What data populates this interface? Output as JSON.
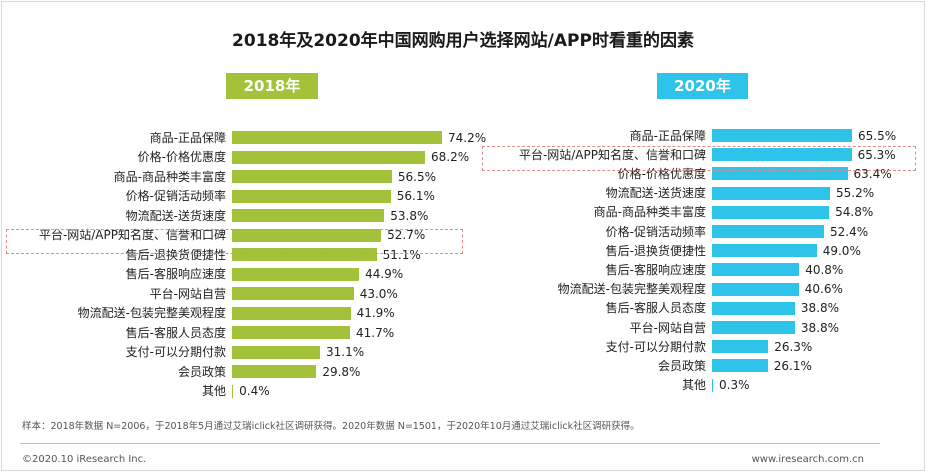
{
  "title": "2018年及2020年中国网购用户选择网站/APP时看重的因素",
  "colors": {
    "c2018": "#a3c23a",
    "c2020": "#2ec3e8",
    "highlight": "#e08a8a"
  },
  "chart_data": [
    {
      "type": "bar",
      "orientation": "horizontal",
      "title": "2018年",
      "unit": "%",
      "highlight_category": "平台-网站/APP知名度、信誉和口碑",
      "categories": [
        "商品-正品保障",
        "价格-价格优惠度",
        "商品-商品种类丰富度",
        "价格-促销活动频率",
        "物流配送-送货速度",
        "平台-网站/APP知名度、信誉和口碑",
        "售后-退换货便捷性",
        "售后-客服响应速度",
        "平台-网站自营",
        "物流配送-包装完整美观程度",
        "售后-客服人员态度",
        "支付-可以分期付款",
        "会员政策",
        "其他"
      ],
      "values": [
        74.2,
        68.2,
        56.5,
        56.1,
        53.8,
        52.7,
        51.1,
        44.9,
        43.0,
        41.9,
        41.7,
        31.1,
        29.8,
        0.4
      ],
      "labels": [
        "74.2%",
        "68.2%",
        "56.5%",
        "56.1%",
        "53.8%",
        "52.7%",
        "51.1%",
        "44.9%",
        "43.0%",
        "41.9%",
        "41.7%",
        "31.1%",
        "29.8%",
        "0.4%"
      ]
    },
    {
      "type": "bar",
      "orientation": "horizontal",
      "title": "2020年",
      "unit": "%",
      "highlight_category": "平台-网站/APP知名度、信誉和口碑",
      "categories": [
        "商品-正品保障",
        "平台-网站/APP知名度、信誉和口碑",
        "价格-价格优惠度",
        "物流配送-送货速度",
        "商品-商品种类丰富度",
        "价格-促销活动频率",
        "售后-退换货便捷性",
        "售后-客服响应速度",
        "物流配送-包装完整美观程度",
        "售后-客服人员态度",
        "平台-网站自营",
        "支付-可以分期付款",
        "会员政策",
        "其他"
      ],
      "values": [
        65.5,
        65.3,
        63.4,
        55.2,
        54.8,
        52.4,
        49.0,
        40.8,
        40.6,
        38.8,
        38.8,
        26.3,
        26.1,
        0.3
      ],
      "labels": [
        "65.5%",
        "65.3%",
        "63.4%",
        "55.2%",
        "54.8%",
        "52.4%",
        "49.0%",
        "40.8%",
        "40.6%",
        "38.8%",
        "38.8%",
        "26.3%",
        "26.1%",
        "0.3%"
      ]
    }
  ],
  "footnote": "样本：2018年数据 N=2006，于2018年5月通过艾瑞iclick社区调研获得。2020年数据 N=1501，于2020年10月通过艾瑞iclick社区调研获得。",
  "footer": {
    "left": "©2020.10 iResearch Inc.",
    "right": "www.iresearch.com.cn"
  }
}
